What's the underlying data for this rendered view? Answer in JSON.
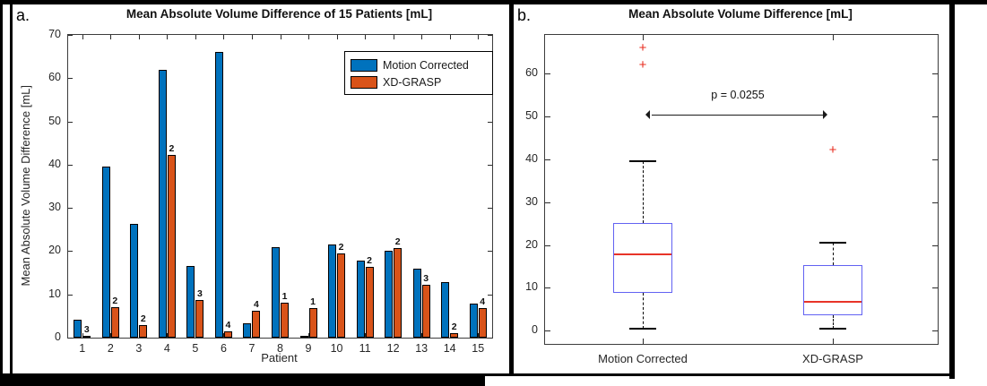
{
  "figure": {
    "panel_a_label": "a.",
    "panel_b_label": "b."
  },
  "chart_data": [
    {
      "id": "bar_chart",
      "type": "bar",
      "title": "Mean Absolute Volume Difference of 15 Patients [mL]",
      "xlabel": "Patient",
      "ylabel": "Mean Absolute Volume Difference [mL]",
      "ylim": [
        0,
        70
      ],
      "yticks": [
        0,
        10,
        20,
        30,
        40,
        50,
        60,
        70
      ],
      "grid": false,
      "legend_position": "top-right-inside",
      "categories": [
        "1",
        "2",
        "3",
        "4",
        "5",
        "6",
        "7",
        "8",
        "9",
        "10",
        "11",
        "12",
        "13",
        "14",
        "15"
      ],
      "series": [
        {
          "name": "Motion Corrected",
          "color": "#0072BD",
          "values": [
            4.2,
            39.5,
            26.3,
            62.0,
            16.5,
            66.0,
            3.3,
            21.0,
            0.5,
            21.6,
            17.8,
            20.0,
            16.0,
            12.8,
            7.8
          ]
        },
        {
          "name": "XD-GRASP",
          "color": "#D95319",
          "values": [
            0.5,
            7.0,
            2.8,
            42.2,
            8.8,
            1.5,
            6.2,
            8.0,
            6.9,
            19.5,
            16.4,
            20.8,
            12.3,
            1.0,
            6.8
          ]
        }
      ],
      "bar_labels": [
        "3",
        "2",
        "2",
        "2",
        "3",
        "4",
        "4",
        "1",
        "1",
        "2",
        "2",
        "2",
        "3",
        "2",
        "4"
      ]
    },
    {
      "id": "box_plot",
      "type": "boxplot",
      "title": "Mean Absolute Volume Difference [mL]",
      "ylim": [
        -3.1,
        69.1
      ],
      "yticks": [
        0,
        10,
        20,
        30,
        40,
        50,
        60
      ],
      "grid": false,
      "categories": [
        "Motion Corrected",
        "XD-GRASP"
      ],
      "boxes": [
        {
          "label": "Motion Corrected",
          "whisker_low": 0.4,
          "q1": 8.8,
          "median": 17.8,
          "q3": 25.1,
          "whisker_high": 39.5,
          "outliers": [
            62.0,
            66.0
          ]
        },
        {
          "label": "XD-GRASP",
          "whisker_low": 0.5,
          "q1": 3.5,
          "median": 6.8,
          "q3": 15.3,
          "whisker_high": 20.5,
          "outliers": [
            42.0
          ]
        }
      ],
      "annotation": {
        "text": "p = 0.0255",
        "text_y": 56.5,
        "arrow_y": 50.5
      },
      "colors": {
        "box_edge": "#6262f2",
        "median": "#e83428",
        "outlier": "#e82c1e",
        "whisker": "#000000"
      }
    }
  ]
}
